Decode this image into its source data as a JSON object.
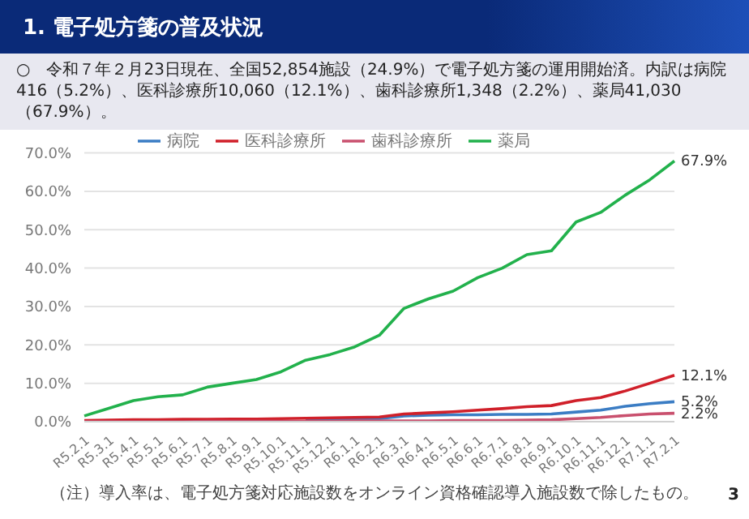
{
  "chart_data": {
    "type": "line",
    "title": "1. 電子処方箋の普及状況",
    "subtitle": "○　令和７年２月23日現在、全国52,854施設（24.9%）で電子処方箋の運用開始済。内訳は病院416（5.2%）、医科診療所10,060（12.1%）、歯科診療所1,348（2.2%）、薬局41,030（67.9%）。",
    "categories": [
      "R5.2.1",
      "R5.3.1",
      "R5.4.1",
      "R5.5.1",
      "R5.6.1",
      "R5.7.1",
      "R5.8.1",
      "R5.9.1",
      "R5.10.1",
      "R5.11.1",
      "R5.12.1",
      "R6.1.1",
      "R6.2.1",
      "R6.3.1",
      "R6.4.1",
      "R6.5.1",
      "R6.6.1",
      "R6.7.1",
      "R6.8.1",
      "R6.9.1",
      "R6.10.1",
      "R6.11.1",
      "R6.12.1",
      "R7.1.1",
      "R7.2.1"
    ],
    "series": [
      {
        "name": "病院",
        "color": "#3b7dc4",
        "values": [
          null,
          null,
          null,
          null,
          null,
          null,
          null,
          null,
          null,
          0.5,
          0.6,
          0.7,
          0.8,
          1.5,
          1.7,
          1.8,
          1.8,
          1.9,
          1.9,
          2,
          2.5,
          3,
          4,
          4.7,
          5.2
        ],
        "value_labels": [
          null,
          null,
          null,
          null,
          null,
          null,
          null,
          null,
          null,
          null,
          null,
          null,
          null,
          null,
          null,
          null,
          null,
          null,
          null,
          null,
          null,
          null,
          null,
          null,
          "5.2%"
        ]
      },
      {
        "name": "医科診療所",
        "color": "#d0202a",
        "values": [
          0.3,
          0.4,
          0.5,
          0.5,
          0.6,
          0.6,
          0.7,
          0.7,
          0.8,
          0.9,
          1,
          1.1,
          1.2,
          2,
          2.3,
          2.6,
          3,
          3.4,
          3.9,
          4.2,
          5.5,
          6.3,
          8,
          10,
          12.1
        ],
        "value_labels": [
          null,
          null,
          null,
          null,
          null,
          null,
          null,
          null,
          null,
          null,
          null,
          null,
          null,
          null,
          null,
          null,
          null,
          null,
          null,
          null,
          null,
          null,
          null,
          null,
          "12.1%"
        ]
      },
      {
        "name": "歯科診療所",
        "color": "#c9506e",
        "values": [
          0,
          0,
          0,
          0,
          0,
          0.1,
          0.1,
          0.1,
          0.1,
          0.1,
          0.1,
          0.2,
          0.2,
          0.2,
          0.2,
          0.3,
          0.3,
          0.3,
          0.4,
          0.5,
          0.8,
          1.1,
          1.6,
          2,
          2.2
        ],
        "value_labels": [
          null,
          null,
          null,
          null,
          null,
          null,
          null,
          null,
          null,
          null,
          null,
          null,
          null,
          null,
          null,
          null,
          null,
          null,
          null,
          null,
          null,
          null,
          null,
          null,
          "2.2%"
        ]
      },
      {
        "name": "薬局",
        "color": "#22b14c",
        "values": [
          1.5,
          3.5,
          5.5,
          6.5,
          7,
          9,
          10,
          11,
          13,
          16,
          17.5,
          19.5,
          22.5,
          29.5,
          32,
          34,
          37.5,
          40,
          43.5,
          44.5,
          52,
          54.5,
          59,
          63,
          67.9
        ],
        "value_labels": [
          null,
          null,
          null,
          null,
          null,
          null,
          null,
          null,
          null,
          null,
          null,
          null,
          null,
          null,
          null,
          null,
          null,
          null,
          null,
          null,
          null,
          null,
          null,
          null,
          "67.9%"
        ]
      }
    ],
    "ylim": [
      0,
      70
    ],
    "yticks": [
      {
        "value": 0,
        "label": "0.0%"
      },
      {
        "value": 10,
        "label": "10.0%"
      },
      {
        "value": 20,
        "label": "20.0%"
      },
      {
        "value": 30,
        "label": "30.0%"
      },
      {
        "value": 40,
        "label": "40.0%"
      },
      {
        "value": 50,
        "label": "50.0%"
      },
      {
        "value": 60,
        "label": "60.0%"
      },
      {
        "value": 70,
        "label": "70.0%"
      }
    ],
    "grid": "y",
    "legend": "top",
    "marker": "none",
    "line_style": "solid",
    "annotations": [
      "（注）導入率は、電子処方箋対応施設数をオンライン資格確認導入施設数で除したもの。",
      "3"
    ]
  }
}
